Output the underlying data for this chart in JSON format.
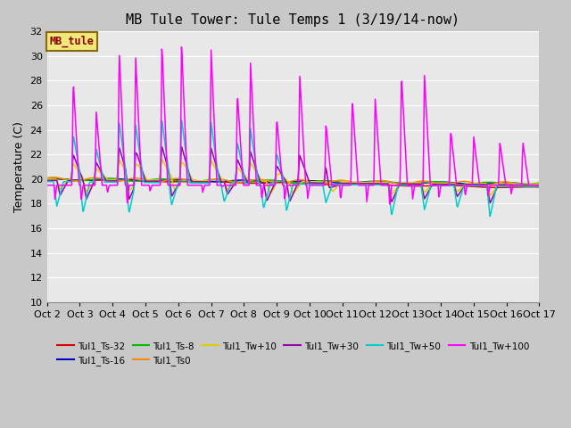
{
  "title": "MB Tule Tower: Tule Temps 1 (3/19/14-now)",
  "ylabel": "Temperature (C)",
  "ylim": [
    10,
    32
  ],
  "yticks": [
    10,
    12,
    14,
    16,
    18,
    20,
    22,
    24,
    26,
    28,
    30,
    32
  ],
  "fig_bg": "#c8c8c8",
  "plot_bg": "#e8e8e8",
  "grid_color": "#ffffff",
  "title_fontsize": 11,
  "label_fontsize": 9,
  "tick_fontsize": 8,
  "legend_label": "MB_tule",
  "legend_bg": "#f0e878",
  "legend_border": "#8B6914",
  "series": [
    {
      "name": "Tul1_Ts-32",
      "color": "#dd0000"
    },
    {
      "name": "Tul1_Ts-16",
      "color": "#0000cc"
    },
    {
      "name": "Tul1_Ts-8",
      "color": "#00bb00"
    },
    {
      "name": "Tul1_Ts0",
      "color": "#ff8800"
    },
    {
      "name": "Tul1_Tw+10",
      "color": "#ddcc00"
    },
    {
      "name": "Tul1_Tw+30",
      "color": "#9900aa"
    },
    {
      "name": "Tul1_Tw+50",
      "color": "#00cccc"
    },
    {
      "name": "Tul1_Tw+100",
      "color": "#ff00ff"
    }
  ],
  "x_tick_labels": [
    "Oct 2",
    "Oct 3",
    "Oct 4",
    "Oct 5",
    "Oct 6",
    "Oct 7",
    "Oct 8",
    "Oct 9",
    "Oct 10",
    "Oct 11",
    "Oct 12",
    "Oct 13",
    "Oct 14",
    "Oct 15",
    "Oct 16",
    "Oct 17"
  ]
}
